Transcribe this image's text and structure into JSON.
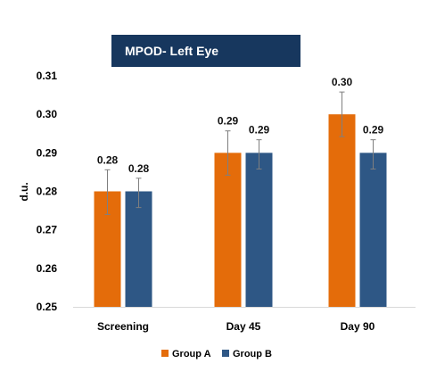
{
  "chart_data": {
    "type": "bar",
    "title": "MPOD- Left Eye",
    "ylabel": "d.u.",
    "xlabel": "",
    "categories": [
      "Screening",
      "Day 45",
      "Day 90"
    ],
    "series": [
      {
        "name": "Group A",
        "color": "#E46C0A",
        "values": [
          0.28,
          0.29,
          0.3
        ],
        "labels": [
          "0.28",
          "0.29",
          "0.30"
        ],
        "error_low": [
          0.274,
          0.2842,
          0.2942
        ],
        "error_high": [
          0.2856,
          0.2957,
          0.3058
        ]
      },
      {
        "name": "Group B",
        "color": "#2E5785",
        "values": [
          0.28,
          0.29,
          0.29
        ],
        "labels": [
          "0.28",
          "0.29",
          "0.29"
        ],
        "error_low": [
          0.2758,
          0.2858,
          0.2858
        ],
        "error_high": [
          0.2834,
          0.2934,
          0.2934
        ]
      }
    ],
    "ylim": [
      0.25,
      0.31
    ],
    "yticks": [
      "0.25",
      "0.26",
      "0.27",
      "0.28",
      "0.29",
      "0.30",
      "0.31"
    ],
    "grid": false,
    "legend_position": "bottom",
    "title_background": "#17375E"
  }
}
